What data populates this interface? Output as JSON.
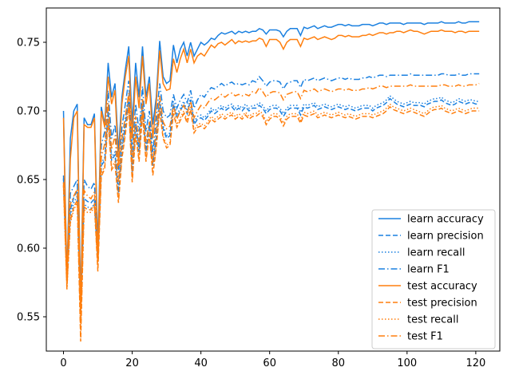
{
  "chart_data": {
    "type": "line",
    "title": "",
    "xlabel": "",
    "ylabel": "",
    "xlim": [
      -5,
      127
    ],
    "ylim": [
      0.525,
      0.775
    ],
    "xticks": [
      0,
      20,
      40,
      60,
      80,
      100,
      120
    ],
    "yticks": [
      0.55,
      0.6,
      0.65,
      0.7,
      0.75
    ],
    "ytick_labels": [
      "0.55",
      "0.60",
      "0.65",
      "0.70",
      "0.75"
    ],
    "xtick_labels": [
      "0",
      "20",
      "40",
      "60",
      "80",
      "100",
      "120"
    ],
    "grid": false,
    "legend_position": "lower-right",
    "colors": {
      "learn": "#1f77b4",
      "learn_bright": "#1a80e0",
      "test": "#ff7f0e"
    },
    "x": [
      0,
      1,
      2,
      3,
      4,
      5,
      6,
      7,
      8,
      9,
      10,
      11,
      12,
      13,
      14,
      15,
      16,
      17,
      18,
      19,
      20,
      21,
      22,
      23,
      24,
      25,
      26,
      27,
      28,
      29,
      30,
      31,
      32,
      33,
      34,
      35,
      36,
      37,
      38,
      39,
      40,
      41,
      42,
      43,
      44,
      45,
      46,
      47,
      48,
      49,
      50,
      51,
      52,
      53,
      54,
      55,
      56,
      57,
      58,
      59,
      60,
      61,
      62,
      63,
      64,
      65,
      66,
      67,
      68,
      69,
      70,
      71,
      72,
      73,
      74,
      75,
      76,
      77,
      78,
      79,
      80,
      81,
      82,
      83,
      84,
      85,
      86,
      87,
      88,
      89,
      90,
      91,
      92,
      93,
      94,
      95,
      96,
      97,
      98,
      99,
      100,
      101,
      102,
      103,
      104,
      105,
      106,
      107,
      108,
      109,
      110,
      111,
      112,
      113,
      114,
      115,
      116,
      117,
      118,
      119,
      120,
      121
    ],
    "series": [
      {
        "name": "learn accuracy",
        "group": "learn",
        "dash": "solid",
        "values": [
          0.7,
          0.578,
          0.68,
          0.7,
          0.705,
          0.56,
          0.695,
          0.69,
          0.69,
          0.698,
          0.6,
          0.703,
          0.69,
          0.735,
          0.71,
          0.72,
          0.67,
          0.71,
          0.73,
          0.747,
          0.69,
          0.735,
          0.71,
          0.747,
          0.71,
          0.725,
          0.69,
          0.71,
          0.751,
          0.725,
          0.72,
          0.722,
          0.748,
          0.735,
          0.745,
          0.75,
          0.74,
          0.75,
          0.74,
          0.745,
          0.75,
          0.748,
          0.75,
          0.753,
          0.752,
          0.755,
          0.757,
          0.756,
          0.757,
          0.758,
          0.756,
          0.758,
          0.757,
          0.758,
          0.757,
          0.758,
          0.758,
          0.76,
          0.759,
          0.756,
          0.759,
          0.759,
          0.759,
          0.758,
          0.754,
          0.758,
          0.76,
          0.76,
          0.76,
          0.755,
          0.761,
          0.76,
          0.761,
          0.762,
          0.76,
          0.761,
          0.762,
          0.761,
          0.761,
          0.762,
          0.763,
          0.763,
          0.762,
          0.763,
          0.762,
          0.762,
          0.762,
          0.763,
          0.763,
          0.763,
          0.762,
          0.763,
          0.764,
          0.764,
          0.763,
          0.764,
          0.764,
          0.764,
          0.764,
          0.763,
          0.764,
          0.764,
          0.764,
          0.764,
          0.764,
          0.763,
          0.764,
          0.764,
          0.764,
          0.764,
          0.765,
          0.764,
          0.764,
          0.764,
          0.764,
          0.765,
          0.764,
          0.764,
          0.765,
          0.765,
          0.765,
          0.765
        ]
      },
      {
        "name": "learn precision",
        "group": "learn",
        "dash": "dashed",
        "values": [
          0.653,
          0.578,
          0.628,
          0.637,
          0.642,
          0.555,
          0.636,
          0.634,
          0.633,
          0.636,
          0.59,
          0.66,
          0.664,
          0.7,
          0.664,
          0.668,
          0.64,
          0.672,
          0.69,
          0.71,
          0.655,
          0.69,
          0.67,
          0.705,
          0.67,
          0.69,
          0.66,
          0.68,
          0.707,
          0.687,
          0.68,
          0.682,
          0.705,
          0.695,
          0.7,
          0.705,
          0.698,
          0.708,
          0.69,
          0.694,
          0.695,
          0.693,
          0.696,
          0.7,
          0.698,
          0.7,
          0.702,
          0.7,
          0.702,
          0.703,
          0.7,
          0.702,
          0.7,
          0.703,
          0.7,
          0.702,
          0.702,
          0.704,
          0.702,
          0.698,
          0.701,
          0.702,
          0.702,
          0.7,
          0.696,
          0.7,
          0.702,
          0.702,
          0.702,
          0.697,
          0.703,
          0.702,
          0.703,
          0.704,
          0.701,
          0.702,
          0.703,
          0.702,
          0.701,
          0.702,
          0.703,
          0.702,
          0.701,
          0.702,
          0.701,
          0.7,
          0.701,
          0.702,
          0.702,
          0.702,
          0.7,
          0.702,
          0.703,
          0.704,
          0.706,
          0.709,
          0.707,
          0.705,
          0.704,
          0.703,
          0.704,
          0.705,
          0.704,
          0.704,
          0.704,
          0.703,
          0.705,
          0.706,
          0.707,
          0.707,
          0.708,
          0.706,
          0.705,
          0.704,
          0.705,
          0.707,
          0.706,
          0.705,
          0.706,
          0.706,
          0.705,
          0.705
        ]
      },
      {
        "name": "learn recall",
        "group": "learn",
        "dash": "dotted",
        "values": [
          0.65,
          0.58,
          0.624,
          0.633,
          0.638,
          0.557,
          0.632,
          0.63,
          0.629,
          0.632,
          0.592,
          0.662,
          0.666,
          0.702,
          0.666,
          0.67,
          0.642,
          0.674,
          0.692,
          0.712,
          0.657,
          0.692,
          0.672,
          0.707,
          0.672,
          0.692,
          0.662,
          0.682,
          0.709,
          0.689,
          0.682,
          0.684,
          0.707,
          0.697,
          0.702,
          0.707,
          0.7,
          0.71,
          0.692,
          0.696,
          0.697,
          0.695,
          0.698,
          0.702,
          0.7,
          0.702,
          0.704,
          0.702,
          0.704,
          0.705,
          0.702,
          0.704,
          0.702,
          0.705,
          0.702,
          0.704,
          0.704,
          0.706,
          0.704,
          0.7,
          0.703,
          0.704,
          0.704,
          0.702,
          0.698,
          0.702,
          0.704,
          0.704,
          0.704,
          0.699,
          0.705,
          0.704,
          0.705,
          0.706,
          0.703,
          0.704,
          0.705,
          0.704,
          0.703,
          0.704,
          0.705,
          0.704,
          0.703,
          0.704,
          0.703,
          0.702,
          0.703,
          0.704,
          0.704,
          0.704,
          0.702,
          0.704,
          0.705,
          0.706,
          0.708,
          0.711,
          0.709,
          0.707,
          0.706,
          0.705,
          0.706,
          0.707,
          0.706,
          0.706,
          0.706,
          0.705,
          0.707,
          0.708,
          0.709,
          0.709,
          0.71,
          0.708,
          0.707,
          0.706,
          0.707,
          0.709,
          0.708,
          0.707,
          0.708,
          0.708,
          0.707,
          0.707
        ]
      },
      {
        "name": "learn F1",
        "group": "learn",
        "dash": "dashdot",
        "values": [
          0.651,
          0.576,
          0.64,
          0.645,
          0.65,
          0.554,
          0.65,
          0.645,
          0.643,
          0.648,
          0.595,
          0.675,
          0.685,
          0.715,
          0.68,
          0.69,
          0.655,
          0.688,
          0.705,
          0.722,
          0.67,
          0.705,
          0.685,
          0.718,
          0.685,
          0.7,
          0.67,
          0.695,
          0.72,
          0.7,
          0.695,
          0.697,
          0.712,
          0.702,
          0.708,
          0.712,
          0.706,
          0.715,
          0.702,
          0.708,
          0.712,
          0.71,
          0.714,
          0.717,
          0.716,
          0.718,
          0.72,
          0.718,
          0.72,
          0.721,
          0.719,
          0.72,
          0.719,
          0.72,
          0.719,
          0.722,
          0.721,
          0.725,
          0.722,
          0.718,
          0.721,
          0.722,
          0.722,
          0.721,
          0.716,
          0.72,
          0.721,
          0.722,
          0.722,
          0.717,
          0.723,
          0.722,
          0.723,
          0.724,
          0.722,
          0.723,
          0.724,
          0.723,
          0.722,
          0.723,
          0.724,
          0.724,
          0.723,
          0.724,
          0.723,
          0.723,
          0.723,
          0.724,
          0.724,
          0.725,
          0.724,
          0.725,
          0.726,
          0.726,
          0.725,
          0.726,
          0.726,
          0.726,
          0.726,
          0.726,
          0.726,
          0.727,
          0.726,
          0.726,
          0.726,
          0.726,
          0.726,
          0.726,
          0.726,
          0.726,
          0.727,
          0.727,
          0.726,
          0.726,
          0.726,
          0.727,
          0.726,
          0.726,
          0.727,
          0.727,
          0.727,
          0.727
        ]
      },
      {
        "name": "test accuracy",
        "group": "test",
        "dash": "solid",
        "values": [
          0.695,
          0.576,
          0.665,
          0.695,
          0.7,
          0.552,
          0.69,
          0.688,
          0.688,
          0.695,
          0.59,
          0.7,
          0.688,
          0.725,
          0.705,
          0.715,
          0.66,
          0.705,
          0.725,
          0.74,
          0.68,
          0.725,
          0.702,
          0.74,
          0.705,
          0.72,
          0.68,
          0.705,
          0.744,
          0.72,
          0.715,
          0.716,
          0.738,
          0.728,
          0.738,
          0.745,
          0.735,
          0.745,
          0.735,
          0.74,
          0.742,
          0.74,
          0.744,
          0.748,
          0.746,
          0.749,
          0.75,
          0.748,
          0.75,
          0.752,
          0.749,
          0.751,
          0.75,
          0.751,
          0.75,
          0.751,
          0.751,
          0.753,
          0.752,
          0.747,
          0.752,
          0.752,
          0.752,
          0.75,
          0.745,
          0.75,
          0.752,
          0.752,
          0.752,
          0.747,
          0.753,
          0.752,
          0.753,
          0.754,
          0.752,
          0.753,
          0.754,
          0.753,
          0.752,
          0.753,
          0.755,
          0.755,
          0.754,
          0.755,
          0.754,
          0.754,
          0.754,
          0.755,
          0.755,
          0.756,
          0.755,
          0.756,
          0.757,
          0.757,
          0.756,
          0.757,
          0.757,
          0.758,
          0.758,
          0.757,
          0.758,
          0.759,
          0.758,
          0.758,
          0.757,
          0.756,
          0.757,
          0.758,
          0.758,
          0.758,
          0.759,
          0.758,
          0.758,
          0.758,
          0.757,
          0.758,
          0.758,
          0.757,
          0.758,
          0.758,
          0.758,
          0.758
        ]
      },
      {
        "name": "test precision",
        "group": "test",
        "dash": "dashed",
        "values": [
          0.648,
          0.572,
          0.62,
          0.63,
          0.635,
          0.532,
          0.63,
          0.628,
          0.628,
          0.632,
          0.583,
          0.652,
          0.658,
          0.692,
          0.657,
          0.661,
          0.633,
          0.665,
          0.683,
          0.703,
          0.648,
          0.683,
          0.663,
          0.698,
          0.663,
          0.683,
          0.653,
          0.673,
          0.7,
          0.68,
          0.673,
          0.675,
          0.698,
          0.688,
          0.693,
          0.698,
          0.691,
          0.701,
          0.684,
          0.688,
          0.689,
          0.687,
          0.69,
          0.694,
          0.692,
          0.694,
          0.696,
          0.694,
          0.696,
          0.697,
          0.694,
          0.696,
          0.694,
          0.697,
          0.694,
          0.696,
          0.696,
          0.698,
          0.696,
          0.69,
          0.694,
          0.696,
          0.696,
          0.694,
          0.689,
          0.694,
          0.696,
          0.696,
          0.696,
          0.691,
          0.697,
          0.696,
          0.697,
          0.698,
          0.695,
          0.696,
          0.697,
          0.696,
          0.695,
          0.696,
          0.697,
          0.696,
          0.695,
          0.696,
          0.695,
          0.694,
          0.695,
          0.696,
          0.696,
          0.696,
          0.695,
          0.696,
          0.697,
          0.698,
          0.7,
          0.703,
          0.701,
          0.7,
          0.699,
          0.698,
          0.699,
          0.7,
          0.699,
          0.698,
          0.697,
          0.696,
          0.698,
          0.7,
          0.701,
          0.701,
          0.702,
          0.7,
          0.699,
          0.698,
          0.699,
          0.7,
          0.699,
          0.698,
          0.699,
          0.7,
          0.7,
          0.7
        ]
      },
      {
        "name": "test recall",
        "group": "test",
        "dash": "dotted",
        "values": [
          0.645,
          0.57,
          0.618,
          0.628,
          0.633,
          0.535,
          0.628,
          0.626,
          0.626,
          0.63,
          0.585,
          0.654,
          0.66,
          0.694,
          0.659,
          0.663,
          0.635,
          0.667,
          0.685,
          0.705,
          0.65,
          0.685,
          0.665,
          0.7,
          0.665,
          0.685,
          0.655,
          0.675,
          0.702,
          0.682,
          0.675,
          0.677,
          0.7,
          0.69,
          0.695,
          0.7,
          0.693,
          0.703,
          0.686,
          0.69,
          0.691,
          0.689,
          0.692,
          0.696,
          0.694,
          0.696,
          0.698,
          0.696,
          0.698,
          0.699,
          0.696,
          0.698,
          0.696,
          0.699,
          0.696,
          0.698,
          0.698,
          0.7,
          0.698,
          0.692,
          0.696,
          0.698,
          0.698,
          0.696,
          0.691,
          0.696,
          0.698,
          0.698,
          0.698,
          0.693,
          0.699,
          0.698,
          0.699,
          0.7,
          0.697,
          0.698,
          0.699,
          0.698,
          0.697,
          0.698,
          0.699,
          0.698,
          0.697,
          0.698,
          0.697,
          0.696,
          0.697,
          0.698,
          0.698,
          0.698,
          0.697,
          0.698,
          0.699,
          0.7,
          0.702,
          0.705,
          0.703,
          0.702,
          0.701,
          0.7,
          0.701,
          0.702,
          0.701,
          0.7,
          0.699,
          0.698,
          0.7,
          0.702,
          0.703,
          0.703,
          0.704,
          0.702,
          0.701,
          0.7,
          0.701,
          0.702,
          0.701,
          0.7,
          0.701,
          0.702,
          0.702,
          0.702
        ]
      },
      {
        "name": "test F1",
        "group": "test",
        "dash": "dashdot",
        "values": [
          0.646,
          0.57,
          0.632,
          0.638,
          0.643,
          0.545,
          0.642,
          0.638,
          0.636,
          0.641,
          0.588,
          0.666,
          0.676,
          0.706,
          0.672,
          0.682,
          0.648,
          0.68,
          0.696,
          0.713,
          0.662,
          0.696,
          0.677,
          0.709,
          0.677,
          0.692,
          0.662,
          0.687,
          0.711,
          0.692,
          0.687,
          0.689,
          0.704,
          0.694,
          0.7,
          0.704,
          0.698,
          0.707,
          0.695,
          0.7,
          0.704,
          0.702,
          0.706,
          0.709,
          0.708,
          0.71,
          0.712,
          0.71,
          0.712,
          0.713,
          0.711,
          0.712,
          0.711,
          0.712,
          0.711,
          0.714,
          0.713,
          0.717,
          0.714,
          0.71,
          0.713,
          0.714,
          0.714,
          0.713,
          0.708,
          0.712,
          0.713,
          0.714,
          0.714,
          0.709,
          0.715,
          0.714,
          0.715,
          0.716,
          0.714,
          0.715,
          0.716,
          0.715,
          0.714,
          0.715,
          0.716,
          0.716,
          0.715,
          0.716,
          0.715,
          0.715,
          0.715,
          0.716,
          0.716,
          0.717,
          0.716,
          0.717,
          0.718,
          0.718,
          0.717,
          0.718,
          0.718,
          0.718,
          0.718,
          0.718,
          0.718,
          0.719,
          0.718,
          0.718,
          0.718,
          0.718,
          0.718,
          0.718,
          0.718,
          0.718,
          0.719,
          0.719,
          0.718,
          0.718,
          0.718,
          0.719,
          0.718,
          0.718,
          0.719,
          0.719,
          0.719,
          0.72
        ]
      }
    ]
  }
}
